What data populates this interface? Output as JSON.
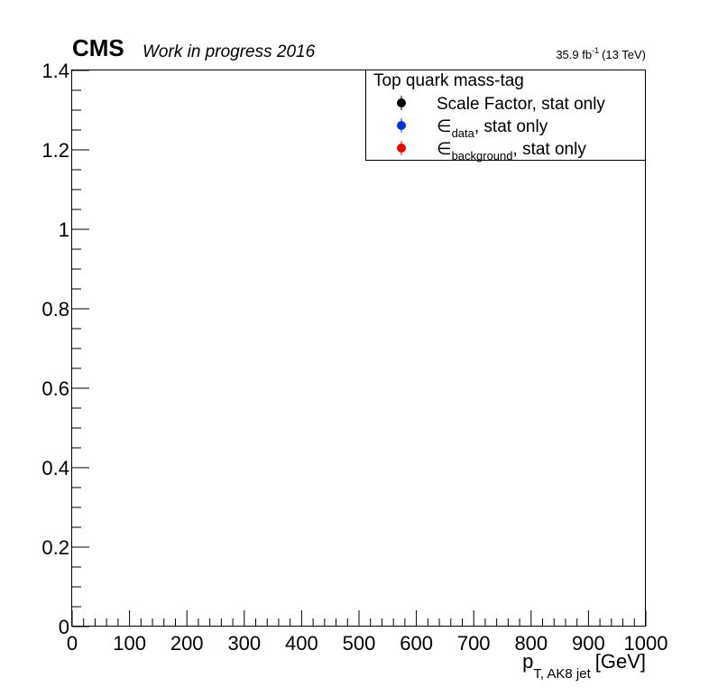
{
  "header": {
    "experiment": "CMS",
    "status": "Work in progress 2016",
    "lumi_value": "35.9 fb",
    "lumi_exponent": "-1",
    "lumi_energy": "(13 TeV)"
  },
  "legend": {
    "title": "Top quark mass-tag",
    "entries": [
      {
        "marker_color": "#000000",
        "symbol": "",
        "subscript": "",
        "text": "Scale Factor, stat only"
      },
      {
        "marker_color": "#0033dd",
        "symbol": "∈",
        "subscript": "data",
        "text": ", stat only"
      },
      {
        "marker_color": "#ee0000",
        "symbol": "∈",
        "subscript": "background",
        "text": ", stat only"
      }
    ]
  },
  "chart_data": {
    "type": "scatter",
    "series": [],
    "xlabel_main": "p",
    "xlabel_sub": "T, AK8 jet",
    "xlabel_unit": "[GeV]",
    "ylabel": "",
    "xlim": [
      0,
      1000
    ],
    "ylim": [
      0,
      1.4
    ],
    "x_ticks": [
      "0",
      "100",
      "200",
      "300",
      "400",
      "500",
      "600",
      "700",
      "800",
      "900",
      "1000"
    ],
    "y_ticks": [
      "0",
      "0.2",
      "0.4",
      "0.6",
      "0.8",
      "1",
      "1.2",
      "1.4"
    ],
    "x_minor_per_major": 5,
    "y_minor_per_major": 4,
    "grid": false,
    "legend_position": "top-right"
  }
}
